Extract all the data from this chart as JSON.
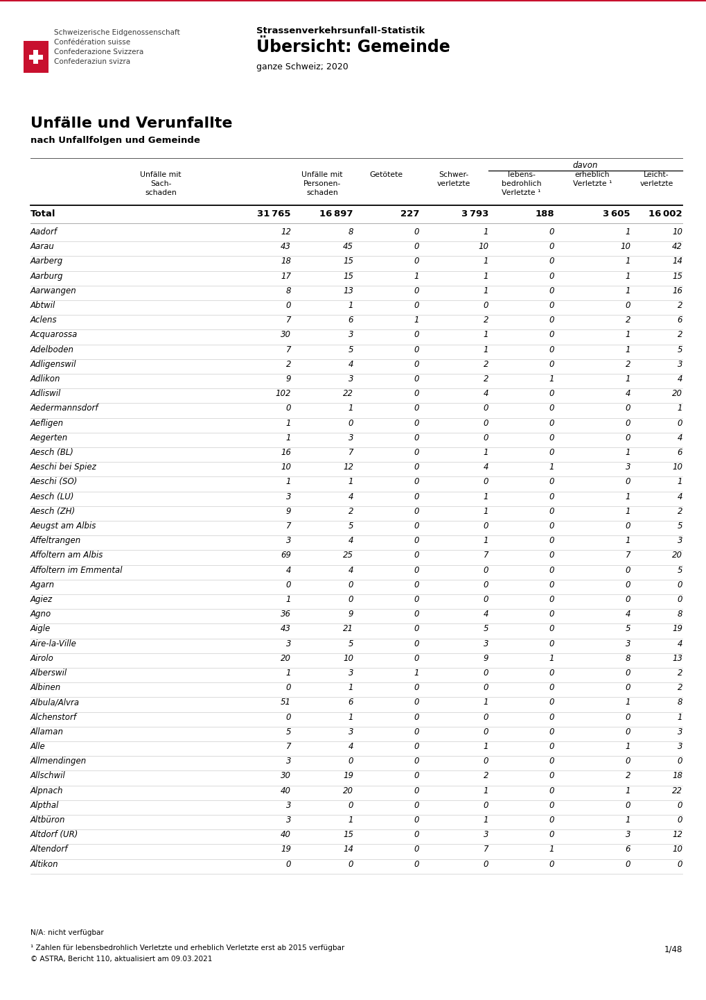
{
  "header_title1": "Strassenverkehrsunfall-Statistik",
  "header_title2": "Übersicht: Gemeinde",
  "header_subtitle": "ganze Schweiz; 2020",
  "org_line1": "Schweizerische Eidgenossenschaft",
  "org_line2": "Confédération suisse",
  "org_line3": "Confederazione Svizzera",
  "org_line4": "Confederaziun svizra",
  "section_title": "Unfälle und Verunfallte",
  "section_subtitle": "nach Unfallfolgen und Gemeinde",
  "col_headers_line1": [
    "Unfälle mit",
    "Unfälle mit",
    "Getötete",
    "Schwer-",
    "lebens-",
    "erheblich",
    "Leicht-"
  ],
  "col_headers_line2": [
    "Sach-",
    "Personen-",
    "",
    "verletzte",
    "bedrohlich",
    "Verletzte ¹",
    "verletzte"
  ],
  "col_headers_line3": [
    "schaden",
    "schaden",
    "",
    "",
    "Verletzte ¹",
    "",
    ""
  ],
  "davon_label": "davon",
  "total_row": [
    "Total",
    "31 765",
    "16 897",
    "227",
    "3 793",
    "188",
    "3 605",
    "16 002"
  ],
  "rows": [
    [
      "Aadorf",
      "12",
      "8",
      "0",
      "1",
      "0",
      "1",
      "10"
    ],
    [
      "Aarau",
      "43",
      "45",
      "0",
      "10",
      "0",
      "10",
      "42"
    ],
    [
      "Aarberg",
      "18",
      "15",
      "0",
      "1",
      "0",
      "1",
      "14"
    ],
    [
      "Aarburg",
      "17",
      "15",
      "1",
      "1",
      "0",
      "1",
      "15"
    ],
    [
      "Aarwangen",
      "8",
      "13",
      "0",
      "1",
      "0",
      "1",
      "16"
    ],
    [
      "Abtwil",
      "0",
      "1",
      "0",
      "0",
      "0",
      "0",
      "2"
    ],
    [
      "Aclens",
      "7",
      "6",
      "1",
      "2",
      "0",
      "2",
      "6"
    ],
    [
      "Acquarossa",
      "30",
      "3",
      "0",
      "1",
      "0",
      "1",
      "2"
    ],
    [
      "Adelboden",
      "7",
      "5",
      "0",
      "1",
      "0",
      "1",
      "5"
    ],
    [
      "Adligenswil",
      "2",
      "4",
      "0",
      "2",
      "0",
      "2",
      "3"
    ],
    [
      "Adlikon",
      "9",
      "3",
      "0",
      "2",
      "1",
      "1",
      "4"
    ],
    [
      "Adliswil",
      "102",
      "22",
      "0",
      "4",
      "0",
      "4",
      "20"
    ],
    [
      "Aedermannsdorf",
      "0",
      "1",
      "0",
      "0",
      "0",
      "0",
      "1"
    ],
    [
      "Aefligen",
      "1",
      "0",
      "0",
      "0",
      "0",
      "0",
      "0"
    ],
    [
      "Aegerten",
      "1",
      "3",
      "0",
      "0",
      "0",
      "0",
      "4"
    ],
    [
      "Aesch (BL)",
      "16",
      "7",
      "0",
      "1",
      "0",
      "1",
      "6"
    ],
    [
      "Aeschi bei Spiez",
      "10",
      "12",
      "0",
      "4",
      "1",
      "3",
      "10"
    ],
    [
      "Aeschi (SO)",
      "1",
      "1",
      "0",
      "0",
      "0",
      "0",
      "1"
    ],
    [
      "Aesch (LU)",
      "3",
      "4",
      "0",
      "1",
      "0",
      "1",
      "4"
    ],
    [
      "Aesch (ZH)",
      "9",
      "2",
      "0",
      "1",
      "0",
      "1",
      "2"
    ],
    [
      "Aeugst am Albis",
      "7",
      "5",
      "0",
      "0",
      "0",
      "0",
      "5"
    ],
    [
      "Affeltrangen",
      "3",
      "4",
      "0",
      "1",
      "0",
      "1",
      "3"
    ],
    [
      "Affoltern am Albis",
      "69",
      "25",
      "0",
      "7",
      "0",
      "7",
      "20"
    ],
    [
      "Affoltern im Emmental",
      "4",
      "4",
      "0",
      "0",
      "0",
      "0",
      "5"
    ],
    [
      "Agarn",
      "0",
      "0",
      "0",
      "0",
      "0",
      "0",
      "0"
    ],
    [
      "Agiez",
      "1",
      "0",
      "0",
      "0",
      "0",
      "0",
      "0"
    ],
    [
      "Agno",
      "36",
      "9",
      "0",
      "4",
      "0",
      "4",
      "8"
    ],
    [
      "Aigle",
      "43",
      "21",
      "0",
      "5",
      "0",
      "5",
      "19"
    ],
    [
      "Aire-la-Ville",
      "3",
      "5",
      "0",
      "3",
      "0",
      "3",
      "4"
    ],
    [
      "Airolo",
      "20",
      "10",
      "0",
      "9",
      "1",
      "8",
      "13"
    ],
    [
      "Alberswil",
      "1",
      "3",
      "1",
      "0",
      "0",
      "0",
      "2"
    ],
    [
      "Albinen",
      "0",
      "1",
      "0",
      "0",
      "0",
      "0",
      "2"
    ],
    [
      "Albula/Alvra",
      "51",
      "6",
      "0",
      "1",
      "0",
      "1",
      "8"
    ],
    [
      "Alchenstorf",
      "0",
      "1",
      "0",
      "0",
      "0",
      "0",
      "1"
    ],
    [
      "Allaman",
      "5",
      "3",
      "0",
      "0",
      "0",
      "0",
      "3"
    ],
    [
      "Alle",
      "7",
      "4",
      "0",
      "1",
      "0",
      "1",
      "3"
    ],
    [
      "Allmendingen",
      "3",
      "0",
      "0",
      "0",
      "0",
      "0",
      "0"
    ],
    [
      "Allschwil",
      "30",
      "19",
      "0",
      "2",
      "0",
      "2",
      "18"
    ],
    [
      "Alpnach",
      "40",
      "20",
      "0",
      "1",
      "0",
      "1",
      "22"
    ],
    [
      "Alpthal",
      "3",
      "0",
      "0",
      "0",
      "0",
      "0",
      "0"
    ],
    [
      "Altbüron",
      "3",
      "1",
      "0",
      "1",
      "0",
      "1",
      "0"
    ],
    [
      "Altdorf (UR)",
      "40",
      "15",
      "0",
      "3",
      "0",
      "3",
      "12"
    ],
    [
      "Altendorf",
      "19",
      "14",
      "0",
      "7",
      "1",
      "6",
      "10"
    ],
    [
      "Altikon",
      "0",
      "0",
      "0",
      "0",
      "0",
      "0",
      "0"
    ]
  ],
  "footnote1": "N/A: nicht verfügbar",
  "footnote2": "¹ Zahlen für lebensbedrohlich Verletzte und erheblich Verletzte erst ab 2015 verfügbar",
  "footnote3": "© ASTRA, Bericht 110, aktualisiert am 09.03.2021",
  "page_info": "1/48",
  "bg_color": "#ffffff"
}
